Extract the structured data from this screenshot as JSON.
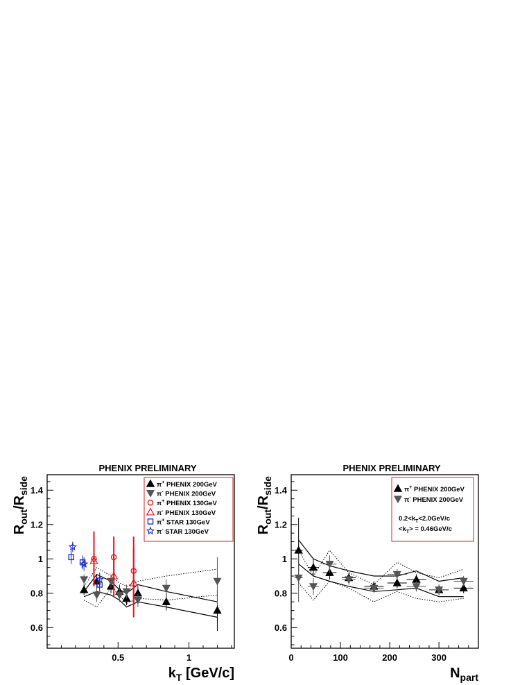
{
  "chart_data": [
    {
      "type": "scatter",
      "title": "PHENIX PRELIMINARY",
      "ylabel_main": "R",
      "ylabel_sub1": "out",
      "ylabel_slash": "/R",
      "ylabel_sub2": "side",
      "xlabel_main": "k",
      "xlabel_sub": "T",
      "xlabel_rest": " [GeV/c]",
      "xlim": [
        0.0,
        1.32
      ],
      "ylim": [
        0.48,
        1.49
      ],
      "yticks": [
        0.6,
        0.8,
        1.0,
        1.2,
        1.4
      ],
      "ytick_labels": [
        "0.6",
        "0.8",
        "1",
        "1.2",
        "1.4"
      ],
      "xticks": [
        0.5,
        1.0
      ],
      "xtick_labels": [
        "0.5",
        "1"
      ],
      "legend_position": "top-right",
      "series": [
        {
          "name": "π⁺ PHENIX 200GeV",
          "legend_pre": "π",
          "legend_sup": "+",
          "legend_text": " PHENIX 200GeV",
          "marker": "triangle-up-filled",
          "color": "#000000",
          "points": [
            [
              0.26,
              0.82,
              0.03
            ],
            [
              0.35,
              0.87,
              0.04
            ],
            [
              0.45,
              0.84,
              0.04
            ],
            [
              0.51,
              0.81,
              0.04
            ],
            [
              0.56,
              0.77,
              0.04
            ],
            [
              0.64,
              0.8,
              0.04
            ],
            [
              0.84,
              0.75,
              0.05
            ],
            [
              1.2,
              0.7,
              0.12
            ]
          ]
        },
        {
          "name": "π⁻ PHENIX 200GeV",
          "legend_pre": "π",
          "legend_sup": "-",
          "legend_text": " PHENIX 200GeV",
          "marker": "triangle-down-filled",
          "color": "#555555",
          "points": [
            [
              0.26,
              0.88,
              0.03
            ],
            [
              0.35,
              0.79,
              0.04
            ],
            [
              0.45,
              0.87,
              0.04
            ],
            [
              0.51,
              0.79,
              0.04
            ],
            [
              0.56,
              0.81,
              0.04
            ],
            [
              0.64,
              0.76,
              0.04
            ],
            [
              0.84,
              0.83,
              0.05
            ],
            [
              1.2,
              0.87,
              0.14
            ]
          ]
        },
        {
          "name": "π⁺ PHENIX 130GeV",
          "legend_pre": "π",
          "legend_sup": "+",
          "legend_text": " PHENIX 130GeV",
          "marker": "circle-open",
          "color": "#e8121a",
          "points": [
            [
              0.33,
              1.0,
              0.16
            ],
            [
              0.47,
              1.01,
              0.12
            ],
            [
              0.61,
              0.93,
              0.2
            ]
          ]
        },
        {
          "name": "π⁻ PHENIX 130GeV",
          "legend_pre": "π",
          "legend_sup": "-",
          "legend_text": " PHENIX 130GeV",
          "marker": "triangle-up-open",
          "color": "#e8121a",
          "points": [
            [
              0.33,
              0.99,
              0.15
            ],
            [
              0.47,
              0.9,
              0.12
            ],
            [
              0.61,
              0.86,
              0.2
            ]
          ]
        },
        {
          "name": "π⁺ STAR 130GeV",
          "legend_pre": "π",
          "legend_sup": "+",
          "legend_text": " STAR 130GeV",
          "marker": "square-open",
          "color": "#1525c8",
          "points": [
            [
              0.17,
              1.01,
              0.04
            ],
            [
              0.25,
              0.98,
              0.04
            ],
            [
              0.37,
              0.85,
              0.04
            ]
          ]
        },
        {
          "name": "π⁻ STAR 130GeV",
          "legend_pre": "π",
          "legend_sup": "-",
          "legend_text": " STAR 130GeV",
          "marker": "star-open",
          "color": "#1525c8",
          "points": [
            [
              0.18,
              1.07,
              0.03
            ],
            [
              0.26,
              0.97,
              0.04
            ],
            [
              0.37,
              0.88,
              0.04
            ]
          ]
        }
      ],
      "bands": [
        {
          "style": "solid",
          "points": [
            [
              0.26,
              0.81
            ],
            [
              0.35,
              0.91
            ],
            [
              0.45,
              0.87
            ],
            [
              0.51,
              0.82
            ],
            [
              0.56,
              0.8
            ],
            [
              0.64,
              0.85
            ],
            [
              0.84,
              0.81
            ],
            [
              1.2,
              0.75
            ]
          ]
        },
        {
          "style": "solid",
          "points": [
            [
              0.26,
              0.78
            ],
            [
              0.35,
              0.81
            ],
            [
              0.45,
              0.79
            ],
            [
              0.51,
              0.76
            ],
            [
              0.56,
              0.72
            ],
            [
              0.64,
              0.75
            ],
            [
              0.84,
              0.72
            ],
            [
              1.2,
              0.66
            ]
          ]
        },
        {
          "style": "dotted",
          "points": [
            [
              0.26,
              0.84
            ],
            [
              0.35,
              0.95
            ],
            [
              0.45,
              0.9
            ],
            [
              0.51,
              0.86
            ],
            [
              0.56,
              0.84
            ],
            [
              0.64,
              0.87
            ],
            [
              0.84,
              0.9
            ],
            [
              1.2,
              0.94
            ]
          ]
        },
        {
          "style": "dotted",
          "points": [
            [
              0.26,
              0.76
            ],
            [
              0.35,
              0.72
            ],
            [
              0.45,
              0.83
            ],
            [
              0.51,
              0.79
            ],
            [
              0.56,
              0.74
            ],
            [
              0.64,
              0.77
            ],
            [
              0.84,
              0.76
            ],
            [
              1.2,
              0.79
            ]
          ]
        }
      ]
    },
    {
      "type": "scatter",
      "title": "PHENIX PRELIMINARY",
      "ylabel_main": "R",
      "ylabel_sub1": "out",
      "ylabel_slash": "/R",
      "ylabel_sub2": "side",
      "xlabel_main": "N",
      "xlabel_sub": "part",
      "xlabel_rest": "",
      "xlim": [
        0,
        380
      ],
      "ylim": [
        0.48,
        1.49
      ],
      "yticks": [
        0.6,
        0.8,
        1.0,
        1.2,
        1.4
      ],
      "ytick_labels": [
        "0.6",
        "0.8",
        "1",
        "1.2",
        "1.4"
      ],
      "xticks": [
        0,
        100,
        200,
        300
      ],
      "xtick_labels": [
        "0",
        "100",
        "200",
        "300"
      ],
      "legend_position": "top-right",
      "legend_extra": [
        {
          "pre": "0.2<k",
          "sub": "T",
          "post": "<2.0GeV/c"
        },
        {
          "pre": "<k",
          "sub": "T",
          "post": "> = 0.46GeV/c"
        }
      ],
      "series": [
        {
          "name": "π⁺ PHENIX 200GeV",
          "legend_pre": "π",
          "legend_sup": "+",
          "legend_text": " PHENIX 200GeV",
          "marker": "triangle-up-filled",
          "color": "#000000",
          "points": [
            [
              15,
              1.05,
              0.19,
              6
            ],
            [
              45,
              0.95,
              0.05,
              8
            ],
            [
              78,
              0.92,
              0.04,
              10
            ],
            [
              117,
              0.89,
              0.03,
              10
            ],
            [
              168,
              0.84,
              0.03,
              14
            ],
            [
              215,
              0.86,
              0.03,
              14
            ],
            [
              254,
              0.88,
              0.03,
              14
            ],
            [
              300,
              0.82,
              0.03,
              14
            ],
            [
              350,
              0.83,
              0.03,
              14
            ]
          ]
        },
        {
          "name": "π⁻ PHENIX 200GeV",
          "legend_pre": "π",
          "legend_sup": "-",
          "legend_text": " PHENIX 200GeV",
          "marker": "triangle-down-filled",
          "color": "#555555",
          "points": [
            [
              15,
              0.89,
              0.14,
              6
            ],
            [
              45,
              0.84,
              0.05,
              8
            ],
            [
              78,
              0.97,
              0.05,
              10
            ],
            [
              117,
              0.88,
              0.03,
              10
            ],
            [
              168,
              0.83,
              0.03,
              14
            ],
            [
              215,
              0.91,
              0.03,
              14
            ],
            [
              254,
              0.84,
              0.03,
              14
            ],
            [
              300,
              0.82,
              0.03,
              14
            ],
            [
              350,
              0.87,
              0.03,
              14
            ]
          ]
        }
      ],
      "bands": [
        {
          "style": "solid",
          "points": [
            [
              15,
              1.11
            ],
            [
              45,
              1.0
            ],
            [
              78,
              0.96
            ],
            [
              117,
              0.93
            ],
            [
              168,
              0.9
            ],
            [
              215,
              0.9
            ],
            [
              254,
              0.93
            ],
            [
              300,
              0.87
            ],
            [
              350,
              0.89
            ]
          ]
        },
        {
          "style": "solid",
          "points": [
            [
              15,
              0.97
            ],
            [
              45,
              0.9
            ],
            [
              78,
              0.87
            ],
            [
              117,
              0.84
            ],
            [
              168,
              0.81
            ],
            [
              215,
              0.82
            ],
            [
              254,
              0.83
            ],
            [
              300,
              0.78
            ],
            [
              350,
              0.78
            ]
          ]
        },
        {
          "style": "dotted",
          "points": [
            [
              15,
              1.05
            ],
            [
              45,
              0.9
            ],
            [
              78,
              1.05
            ],
            [
              117,
              0.92
            ],
            [
              168,
              0.85
            ],
            [
              215,
              0.98
            ],
            [
              254,
              0.92
            ],
            [
              300,
              0.89
            ],
            [
              350,
              0.94
            ]
          ]
        },
        {
          "style": "dotted",
          "points": [
            [
              15,
              0.86
            ],
            [
              45,
              0.76
            ],
            [
              78,
              0.87
            ],
            [
              117,
              0.83
            ],
            [
              168,
              0.75
            ],
            [
              215,
              0.81
            ],
            [
              254,
              0.77
            ],
            [
              300,
              0.75
            ],
            [
              350,
              0.77
            ]
          ]
        }
      ]
    }
  ]
}
